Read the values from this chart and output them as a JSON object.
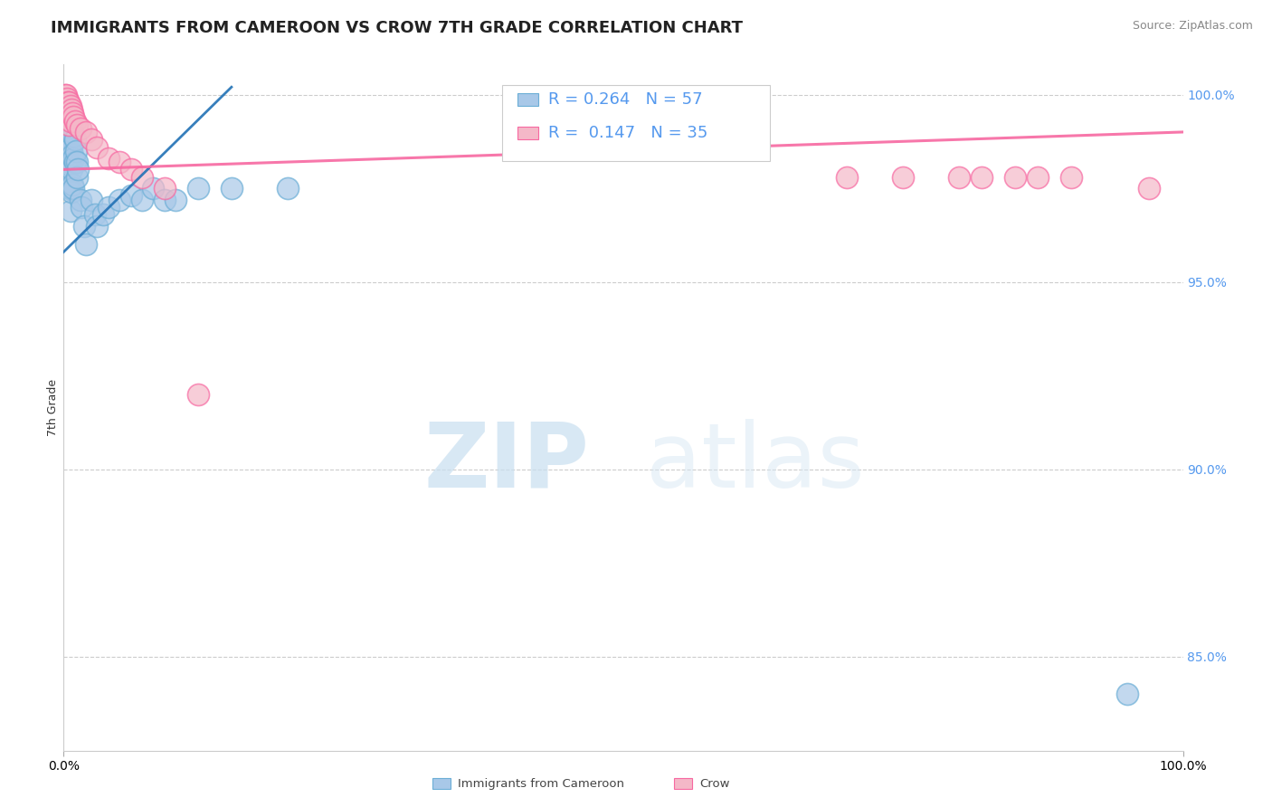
{
  "title": "IMMIGRANTS FROM CAMEROON VS CROW 7TH GRADE CORRELATION CHART",
  "source": "Source: ZipAtlas.com",
  "ylabel": "7th Grade",
  "legend_label1": "Immigrants from Cameroon",
  "legend_label2": "Crow",
  "R1": 0.264,
  "N1": 57,
  "R2": 0.147,
  "N2": 35,
  "blue_color": "#a8c8e8",
  "blue_edge_color": "#6baed6",
  "pink_color": "#f4b8c8",
  "pink_edge_color": "#f768a1",
  "blue_line_color": "#2171b5",
  "pink_line_color": "#f768a1",
  "xlim": [
    0.0,
    1.0
  ],
  "ylim": [
    0.825,
    1.008
  ],
  "yticks": [
    0.85,
    0.9,
    0.95,
    1.0
  ],
  "ytick_labels": [
    "85.0%",
    "90.0%",
    "95.0%",
    "100.0%"
  ],
  "blue_x": [
    0.001,
    0.001,
    0.001,
    0.002,
    0.002,
    0.002,
    0.003,
    0.003,
    0.003,
    0.004,
    0.004,
    0.004,
    0.004,
    0.005,
    0.005,
    0.005,
    0.005,
    0.006,
    0.006,
    0.006,
    0.006,
    0.006,
    0.007,
    0.007,
    0.007,
    0.007,
    0.008,
    0.008,
    0.008,
    0.009,
    0.009,
    0.009,
    0.01,
    0.01,
    0.011,
    0.012,
    0.012,
    0.013,
    0.015,
    0.016,
    0.018,
    0.02,
    0.025,
    0.028,
    0.03,
    0.035,
    0.04,
    0.05,
    0.06,
    0.07,
    0.08,
    0.09,
    0.1,
    0.12,
    0.15,
    0.2,
    0.95
  ],
  "blue_y": [
    0.998,
    0.993,
    0.988,
    0.997,
    0.992,
    0.986,
    0.996,
    0.99,
    0.984,
    0.995,
    0.989,
    0.983,
    0.977,
    0.994,
    0.988,
    0.982,
    0.975,
    0.993,
    0.987,
    0.981,
    0.975,
    0.969,
    0.992,
    0.986,
    0.98,
    0.974,
    0.99,
    0.984,
    0.976,
    0.989,
    0.983,
    0.975,
    0.988,
    0.982,
    0.985,
    0.982,
    0.978,
    0.98,
    0.972,
    0.97,
    0.965,
    0.96,
    0.972,
    0.968,
    0.965,
    0.968,
    0.97,
    0.972,
    0.973,
    0.972,
    0.975,
    0.972,
    0.972,
    0.975,
    0.975,
    0.975,
    0.84
  ],
  "pink_x": [
    0.001,
    0.001,
    0.002,
    0.002,
    0.003,
    0.003,
    0.004,
    0.004,
    0.005,
    0.005,
    0.006,
    0.006,
    0.007,
    0.008,
    0.009,
    0.01,
    0.012,
    0.015,
    0.02,
    0.025,
    0.03,
    0.04,
    0.05,
    0.06,
    0.07,
    0.09,
    0.12,
    0.7,
    0.75,
    0.8,
    0.82,
    0.85,
    0.87,
    0.9,
    0.97
  ],
  "pink_y": [
    1.0,
    0.998,
    1.0,
    0.996,
    0.999,
    0.995,
    0.998,
    0.994,
    0.998,
    0.992,
    0.997,
    0.993,
    0.996,
    0.995,
    0.994,
    0.993,
    0.992,
    0.991,
    0.99,
    0.988,
    0.986,
    0.983,
    0.982,
    0.98,
    0.978,
    0.975,
    0.92,
    0.978,
    0.978,
    0.978,
    0.978,
    0.978,
    0.978,
    0.978,
    0.975
  ],
  "blue_trendline_x": [
    0.0,
    0.15
  ],
  "blue_trendline_y": [
    0.958,
    1.002
  ],
  "pink_trendline_x": [
    0.0,
    1.0
  ],
  "pink_trendline_y": [
    0.98,
    0.99
  ],
  "watermark_zip": "ZIP",
  "watermark_atlas": "atlas",
  "title_fontsize": 13,
  "axis_label_fontsize": 9,
  "tick_fontsize": 10,
  "legend_fontsize": 13
}
